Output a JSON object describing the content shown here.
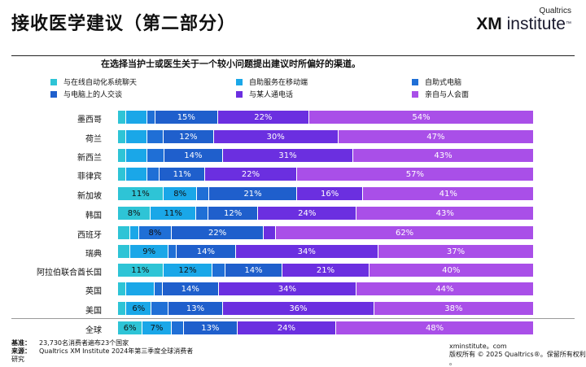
{
  "header": {
    "title": "接收医学建议（第二部分）",
    "logo_top": "Qualtrics",
    "logo_xm": "XM",
    "logo_rest": " institute",
    "logo_tm": "™"
  },
  "chart_data": {
    "type": "bar",
    "orientation": "horizontal",
    "stacked": true,
    "title": "在选择当护士或医生关于一个较小问题提出建议时所偏好的渠道。",
    "legend": [
      "与在线自动化系统聊天",
      "自助服务在移动端",
      "自助式电脑",
      "与电脑上的人交谈",
      "与某人通电话",
      "亲自与人会面"
    ],
    "colors": [
      "#2ec4d6",
      "#1aa7e8",
      "#1f6fd6",
      "#1f5fcc",
      "#6b2fe0",
      "#a94fe8"
    ],
    "categories": [
      "墨西哥",
      "荷兰",
      "新西兰",
      "菲律宾",
      "新加坡",
      "韩国",
      "西班牙",
      "瑞典",
      "阿拉伯联合酋长国",
      "英国",
      "美国",
      "全球"
    ],
    "series": [
      {
        "name": "与在线自动化系统聊天",
        "values": [
          2,
          2,
          2,
          2,
          11,
          8,
          3,
          3,
          11,
          2,
          2,
          6
        ]
      },
      {
        "name": "自助服务在移动端",
        "values": [
          5,
          5,
          5,
          5,
          8,
          11,
          2,
          9,
          12,
          7,
          6,
          7
        ]
      },
      {
        "name": "自助式电脑",
        "values": [
          2,
          4,
          4,
          3,
          3,
          3,
          8,
          2,
          3,
          2,
          4,
          3
        ]
      },
      {
        "name": "与电脑上的人交谈",
        "values": [
          15,
          12,
          14,
          11,
          21,
          12,
          22,
          14,
          14,
          14,
          13,
          13
        ]
      },
      {
        "name": "与某人通电话",
        "values": [
          22,
          30,
          31,
          22,
          16,
          24,
          3,
          34,
          21,
          34,
          36,
          24
        ]
      },
      {
        "name": "亲自与人会面",
        "values": [
          54,
          47,
          43,
          57,
          41,
          43,
          62,
          37,
          40,
          44,
          38,
          48
        ]
      }
    ],
    "data_labels": [
      [
        "",
        "",
        "",
        "15%",
        "22%",
        "54%"
      ],
      [
        "",
        "",
        "",
        "12%",
        "30%",
        "47%"
      ],
      [
        "",
        "",
        "",
        "14%",
        "31%",
        "43%"
      ],
      [
        "",
        "",
        "",
        "11%",
        "22%",
        "57%"
      ],
      [
        "11%",
        "8%",
        "",
        "21%",
        "16%",
        "41%"
      ],
      [
        "8%",
        "11%",
        "",
        "12%",
        "24%",
        "43%"
      ],
      [
        "",
        "",
        "8%",
        "22%",
        "",
        "62%"
      ],
      [
        "",
        "9%",
        "",
        "14%",
        "34%",
        "37%"
      ],
      [
        "11%",
        "12%",
        "",
        "14%",
        "21%",
        "40%"
      ],
      [
        "",
        "",
        "",
        "14%",
        "34%",
        "44%"
      ],
      [
        "",
        "6%",
        "",
        "13%",
        "36%",
        "38%"
      ],
      [
        "6%",
        "7%",
        "",
        "13%",
        "24%",
        "48%"
      ]
    ],
    "xlim": [
      0,
      100
    ],
    "legend_position": "top"
  },
  "footer": {
    "base_label": "基准：",
    "base_text": "23,730名消费者遍布23个国家",
    "source_label": "来源：",
    "source_text": "Qualtrics XM Institute 2024年第三季度全球消费者",
    "source_text2": "研究",
    "site": "xminstitute。com",
    "copyright": "版权所有 © 2025 Qualtrics®。保留所有权利",
    "copyright2": "。"
  }
}
